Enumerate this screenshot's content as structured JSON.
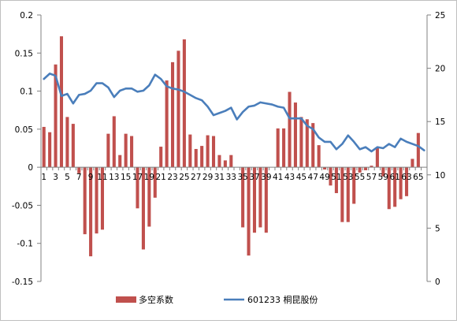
{
  "chart_data": {
    "type": "bar+line",
    "x": [
      1,
      2,
      3,
      4,
      5,
      6,
      7,
      8,
      9,
      10,
      11,
      12,
      13,
      14,
      15,
      16,
      17,
      18,
      19,
      20,
      21,
      22,
      23,
      24,
      25,
      26,
      27,
      28,
      29,
      30,
      31,
      32,
      33,
      34,
      35,
      36,
      37,
      38,
      39,
      40,
      41,
      42,
      43,
      44,
      45,
      46,
      47,
      48,
      49,
      50,
      51,
      52,
      53,
      54,
      55,
      56,
      57,
      58,
      59,
      60,
      61,
      62,
      63,
      64,
      65,
      66
    ],
    "x_tick_labels": [
      "1",
      "3",
      "5",
      "7",
      "9",
      "11",
      "13",
      "15",
      "17",
      "19",
      "21",
      "23",
      "25",
      "27",
      "29",
      "31",
      "33",
      "35",
      "37",
      "39",
      "41",
      "43",
      "45",
      "47",
      "49",
      "51",
      "53",
      "55",
      "57",
      "59",
      "61",
      "63",
      "65"
    ],
    "y_left_ticks": [
      "0.2",
      "0.15",
      "0.1",
      "0.05",
      "0",
      "-0.05",
      "-0.1",
      "-0.15"
    ],
    "y_right_ticks": [
      "25",
      "20",
      "15",
      "10",
      "5",
      "0"
    ],
    "ylim_left": [
      -0.15,
      0.2
    ],
    "ylim_right": [
      0,
      25
    ],
    "grid": false,
    "legend_position": "bottom",
    "series": [
      {
        "name": "多空系数",
        "type": "bar",
        "axis": "left",
        "color": "#c0504d",
        "values": [
          0.053,
          0.046,
          0.135,
          0.172,
          0.066,
          0.057,
          -0.008,
          -0.088,
          -0.117,
          -0.087,
          -0.082,
          0.044,
          0.067,
          0.016,
          0.044,
          0.041,
          -0.054,
          -0.108,
          -0.078,
          -0.04,
          0.027,
          0.114,
          0.138,
          0.153,
          0.168,
          0.043,
          0.024,
          0.028,
          0.042,
          0.041,
          0.016,
          0.009,
          0.016,
          0.0,
          -0.079,
          -0.116,
          -0.086,
          -0.079,
          -0.086,
          0.0,
          0.051,
          0.051,
          0.099,
          0.085,
          0.066,
          0.063,
          0.058,
          0.029,
          -0.003,
          -0.024,
          -0.034,
          -0.072,
          -0.072,
          -0.048,
          -0.007,
          -0.004,
          0.002,
          0.025,
          -0.012,
          -0.055,
          -0.052,
          -0.042,
          -0.038,
          0.011,
          0.045,
          0.0
        ]
      },
      {
        "name": "601233 桐昆股份",
        "type": "line",
        "axis": "right",
        "color": "#4a7ebb",
        "values": [
          19.0,
          19.5,
          19.3,
          17.4,
          17.6,
          16.7,
          17.5,
          17.6,
          17.9,
          18.6,
          18.6,
          18.2,
          17.3,
          17.9,
          18.1,
          18.1,
          17.8,
          17.9,
          18.4,
          19.4,
          19.0,
          18.3,
          18.1,
          18.0,
          17.8,
          17.5,
          17.2,
          17.0,
          16.4,
          15.6,
          15.8,
          16.0,
          16.3,
          15.2,
          15.9,
          16.4,
          16.5,
          16.8,
          16.7,
          16.6,
          16.4,
          16.3,
          15.3,
          15.3,
          15.3,
          14.6,
          14.3,
          13.5,
          13.1,
          13.1,
          12.4,
          12.9,
          13.7,
          13.1,
          12.4,
          12.6,
          12.2,
          12.6,
          12.5,
          12.9,
          12.6,
          13.4,
          13.1,
          12.9,
          12.7,
          12.3
        ]
      }
    ]
  }
}
